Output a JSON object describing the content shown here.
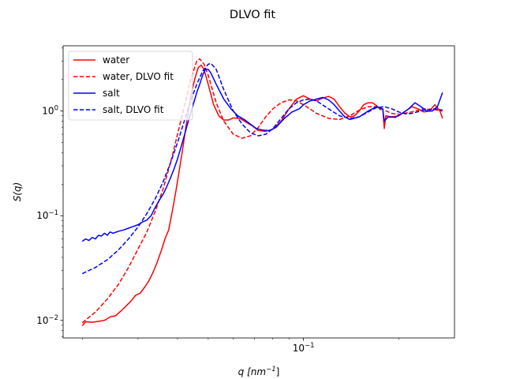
{
  "chart_data": {
    "type": "line",
    "title": "DLVO fit",
    "xlabel_base": "q",
    "xlabel_unit_prefix": "[nm",
    "xlabel_unit_exp": "−1",
    "xlabel_unit_suffix": "]",
    "ylabel": "S(q)",
    "xscale": "log",
    "yscale": "log",
    "xlim": [
      0.0174,
      0.3
    ],
    "ylim": [
      0.0068,
      4.2
    ],
    "grid": false,
    "legend_position": "top-left",
    "xticks": [
      {
        "value": 0.1,
        "base": "10",
        "exp": "−1"
      }
    ],
    "yticks": [
      {
        "value": 0.01,
        "base": "10",
        "exp": "−2"
      },
      {
        "value": 0.1,
        "base": "10",
        "exp": "−1"
      },
      {
        "value": 1,
        "base": "10",
        "exp": "0"
      }
    ],
    "series": [
      {
        "name": "water",
        "color": "#ff0000",
        "style": "solid",
        "points": [
          [
            0.02,
            0.0089
          ],
          [
            0.0205,
            0.0097
          ],
          [
            0.0215,
            0.0096
          ],
          [
            0.0225,
            0.0098
          ],
          [
            0.0235,
            0.01
          ],
          [
            0.0245,
            0.0108
          ],
          [
            0.0255,
            0.0111
          ],
          [
            0.0265,
            0.0123
          ],
          [
            0.0275,
            0.0137
          ],
          [
            0.0285,
            0.0153
          ],
          [
            0.0295,
            0.0174
          ],
          [
            0.0305,
            0.0182
          ],
          [
            0.0315,
            0.0208
          ],
          [
            0.0325,
            0.024
          ],
          [
            0.0335,
            0.029
          ],
          [
            0.0345,
            0.036
          ],
          [
            0.0355,
            0.046
          ],
          [
            0.0365,
            0.06
          ],
          [
            0.0375,
            0.073
          ],
          [
            0.0385,
            0.11
          ],
          [
            0.0395,
            0.17
          ],
          [
            0.0405,
            0.27
          ],
          [
            0.0415,
            0.43
          ],
          [
            0.0425,
            0.7
          ],
          [
            0.0435,
            1.1
          ],
          [
            0.0445,
            1.6
          ],
          [
            0.0455,
            2.1
          ],
          [
            0.0465,
            2.6
          ],
          [
            0.0475,
            2.75
          ],
          [
            0.0485,
            2.5
          ],
          [
            0.05,
            1.8
          ],
          [
            0.052,
            1.15
          ],
          [
            0.054,
            0.9
          ],
          [
            0.056,
            0.82
          ],
          [
            0.058,
            0.82
          ],
          [
            0.06,
            0.86
          ],
          [
            0.063,
            0.85
          ],
          [
            0.066,
            0.78
          ],
          [
            0.069,
            0.72
          ],
          [
            0.072,
            0.65
          ],
          [
            0.076,
            0.64
          ],
          [
            0.08,
            0.67
          ],
          [
            0.085,
            0.8
          ],
          [
            0.09,
            1.05
          ],
          [
            0.095,
            1.3
          ],
          [
            0.1,
            1.4
          ],
          [
            0.105,
            1.3
          ],
          [
            0.11,
            1.25
          ],
          [
            0.115,
            1.33
          ],
          [
            0.12,
            1.38
          ],
          [
            0.125,
            1.3
          ],
          [
            0.13,
            1.1
          ],
          [
            0.135,
            0.96
          ],
          [
            0.14,
            0.88
          ],
          [
            0.145,
            0.9
          ],
          [
            0.15,
            1.0
          ],
          [
            0.155,
            1.15
          ],
          [
            0.16,
            1.2
          ],
          [
            0.165,
            1.2
          ],
          [
            0.17,
            1.13
          ],
          [
            0.175,
            1.03
          ],
          [
            0.178,
            1.05
          ],
          [
            0.18,
            0.68
          ],
          [
            0.182,
            0.9
          ],
          [
            0.19,
            0.88
          ],
          [
            0.2,
            0.9
          ],
          [
            0.21,
            1.0
          ],
          [
            0.22,
            1.1
          ],
          [
            0.23,
            1.05
          ],
          [
            0.24,
            0.98
          ],
          [
            0.25,
            1.0
          ],
          [
            0.26,
            1.15
          ],
          [
            0.27,
            1.0
          ],
          [
            0.275,
            0.85
          ]
        ]
      },
      {
        "name": "water, DLVO fit",
        "color": "#ff0000",
        "style": "dashed",
        "points": [
          [
            0.02,
            0.0095
          ],
          [
            0.022,
            0.012
          ],
          [
            0.024,
            0.016
          ],
          [
            0.026,
            0.022
          ],
          [
            0.028,
            0.032
          ],
          [
            0.03,
            0.048
          ],
          [
            0.032,
            0.07
          ],
          [
            0.034,
            0.11
          ],
          [
            0.036,
            0.18
          ],
          [
            0.038,
            0.32
          ],
          [
            0.04,
            0.6
          ],
          [
            0.042,
            1.1
          ],
          [
            0.044,
            2.0
          ],
          [
            0.046,
            3.0
          ],
          [
            0.047,
            3.15
          ],
          [
            0.0485,
            2.8
          ],
          [
            0.05,
            2.2
          ],
          [
            0.053,
            1.2
          ],
          [
            0.056,
            0.8
          ],
          [
            0.06,
            0.6
          ],
          [
            0.064,
            0.55
          ],
          [
            0.068,
            0.58
          ],
          [
            0.072,
            0.7
          ],
          [
            0.076,
            0.88
          ],
          [
            0.08,
            1.05
          ],
          [
            0.085,
            1.2
          ],
          [
            0.09,
            1.28
          ],
          [
            0.095,
            1.25
          ],
          [
            0.1,
            1.15
          ],
          [
            0.11,
            0.95
          ],
          [
            0.12,
            0.85
          ],
          [
            0.13,
            0.83
          ],
          [
            0.14,
            0.9
          ],
          [
            0.15,
            1.02
          ],
          [
            0.16,
            1.1
          ],
          [
            0.17,
            1.1
          ],
          [
            0.18,
            1.02
          ],
          [
            0.19,
            0.95
          ],
          [
            0.2,
            0.93
          ],
          [
            0.22,
            0.98
          ],
          [
            0.24,
            1.05
          ],
          [
            0.26,
            1.03
          ],
          [
            0.275,
            1.0
          ]
        ]
      },
      {
        "name": "salt",
        "color": "#0000ff",
        "style": "solid",
        "points": [
          [
            0.02,
            0.057
          ],
          [
            0.0205,
            0.06
          ],
          [
            0.021,
            0.058
          ],
          [
            0.0215,
            0.062
          ],
          [
            0.022,
            0.06
          ],
          [
            0.0225,
            0.065
          ],
          [
            0.023,
            0.064
          ],
          [
            0.0235,
            0.068
          ],
          [
            0.024,
            0.065
          ],
          [
            0.0245,
            0.07
          ],
          [
            0.025,
            0.068
          ],
          [
            0.026,
            0.071
          ],
          [
            0.027,
            0.073
          ],
          [
            0.028,
            0.076
          ],
          [
            0.029,
            0.079
          ],
          [
            0.03,
            0.082
          ],
          [
            0.031,
            0.087
          ],
          [
            0.032,
            0.091
          ],
          [
            0.033,
            0.1
          ],
          [
            0.034,
            0.12
          ],
          [
            0.035,
            0.14
          ],
          [
            0.036,
            0.16
          ],
          [
            0.037,
            0.19
          ],
          [
            0.038,
            0.23
          ],
          [
            0.039,
            0.28
          ],
          [
            0.04,
            0.35
          ],
          [
            0.041,
            0.45
          ],
          [
            0.042,
            0.58
          ],
          [
            0.043,
            0.75
          ],
          [
            0.044,
            0.95
          ],
          [
            0.045,
            1.2
          ],
          [
            0.046,
            1.5
          ],
          [
            0.047,
            1.8
          ],
          [
            0.048,
            2.2
          ],
          [
            0.049,
            2.5
          ],
          [
            0.05,
            2.5
          ],
          [
            0.051,
            2.3
          ],
          [
            0.053,
            1.8
          ],
          [
            0.056,
            1.3
          ],
          [
            0.059,
            1.05
          ],
          [
            0.062,
            0.9
          ],
          [
            0.065,
            0.83
          ],
          [
            0.068,
            0.75
          ],
          [
            0.071,
            0.68
          ],
          [
            0.074,
            0.66
          ],
          [
            0.078,
            0.65
          ],
          [
            0.082,
            0.7
          ],
          [
            0.087,
            0.85
          ],
          [
            0.092,
            0.98
          ],
          [
            0.097,
            1.05
          ],
          [
            0.1,
            1.15
          ],
          [
            0.105,
            1.25
          ],
          [
            0.11,
            1.3
          ],
          [
            0.115,
            1.35
          ],
          [
            0.12,
            1.28
          ],
          [
            0.125,
            1.15
          ],
          [
            0.13,
            1.0
          ],
          [
            0.135,
            0.88
          ],
          [
            0.14,
            0.83
          ],
          [
            0.15,
            0.88
          ],
          [
            0.16,
            1.0
          ],
          [
            0.17,
            1.1
          ],
          [
            0.178,
            1.05
          ],
          [
            0.18,
            0.8
          ],
          [
            0.185,
            0.88
          ],
          [
            0.195,
            0.87
          ],
          [
            0.205,
            0.95
          ],
          [
            0.215,
            1.05
          ],
          [
            0.225,
            1.2
          ],
          [
            0.235,
            1.1
          ],
          [
            0.245,
            1.0
          ],
          [
            0.255,
            1.0
          ],
          [
            0.265,
            1.1
          ],
          [
            0.275,
            1.5
          ]
        ]
      },
      {
        "name": "salt, DLVO fit",
        "color": "#0000ff",
        "style": "dashed",
        "points": [
          [
            0.02,
            0.028
          ],
          [
            0.022,
            0.032
          ],
          [
            0.024,
            0.038
          ],
          [
            0.026,
            0.047
          ],
          [
            0.028,
            0.06
          ],
          [
            0.03,
            0.078
          ],
          [
            0.032,
            0.105
          ],
          [
            0.034,
            0.145
          ],
          [
            0.036,
            0.21
          ],
          [
            0.038,
            0.32
          ],
          [
            0.04,
            0.5
          ],
          [
            0.042,
            0.8
          ],
          [
            0.044,
            1.25
          ],
          [
            0.046,
            1.8
          ],
          [
            0.048,
            2.4
          ],
          [
            0.05,
            2.8
          ],
          [
            0.051,
            2.85
          ],
          [
            0.053,
            2.5
          ],
          [
            0.056,
            1.6
          ],
          [
            0.06,
            1.0
          ],
          [
            0.064,
            0.75
          ],
          [
            0.068,
            0.62
          ],
          [
            0.072,
            0.58
          ],
          [
            0.076,
            0.6
          ],
          [
            0.08,
            0.68
          ],
          [
            0.085,
            0.85
          ],
          [
            0.09,
            1.05
          ],
          [
            0.095,
            1.2
          ],
          [
            0.1,
            1.28
          ],
          [
            0.105,
            1.3
          ],
          [
            0.11,
            1.25
          ],
          [
            0.12,
            1.05
          ],
          [
            0.13,
            0.9
          ],
          [
            0.14,
            0.85
          ],
          [
            0.15,
            0.88
          ],
          [
            0.16,
            0.98
          ],
          [
            0.17,
            1.08
          ],
          [
            0.18,
            1.1
          ],
          [
            0.19,
            1.05
          ],
          [
            0.2,
            0.98
          ],
          [
            0.21,
            0.94
          ],
          [
            0.22,
            0.95
          ],
          [
            0.24,
            1.02
          ],
          [
            0.26,
            1.05
          ],
          [
            0.275,
            1.02
          ]
        ]
      }
    ]
  }
}
